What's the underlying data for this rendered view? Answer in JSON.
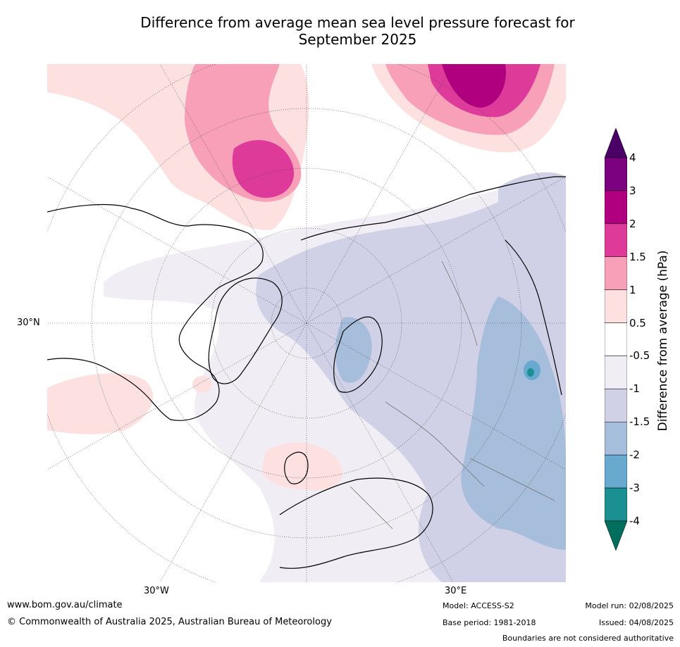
{
  "title": {
    "line1": "Difference from average mean sea level pressure forecast for",
    "line2": "September 2025"
  },
  "map": {
    "lat_label": "30°N",
    "lon_labels": [
      "30°W",
      "30°E"
    ]
  },
  "legend": {
    "title": "Difference from average (hPa)",
    "ticks": [
      "4",
      "3",
      "2",
      "1.5",
      "1",
      "0.5",
      "-0.5",
      "-1",
      "-1.5",
      "-2",
      "-3",
      "-4"
    ],
    "colors": [
      "#4a0066",
      "#7a0080",
      "#b0007f",
      "#dd3a9a",
      "#f7a0b8",
      "#fde0e0",
      "#ffffff",
      "#f1edf5",
      "#d0d1e6",
      "#a6bddb",
      "#67a9cf",
      "#1b9092",
      "#006e5c"
    ]
  },
  "footer": {
    "website": "www.bom.gov.au/climate",
    "copyright": "© Commonwealth of Australia 2025, Australian Bureau of Meteorology",
    "model": "Model: ACCESS-S2",
    "base_period": "Base period: 1981-2018",
    "model_run": "Model run: 02/08/2025",
    "issued": "Issued: 04/08/2025",
    "disclaimer": "Boundaries are not considered authoritative"
  }
}
